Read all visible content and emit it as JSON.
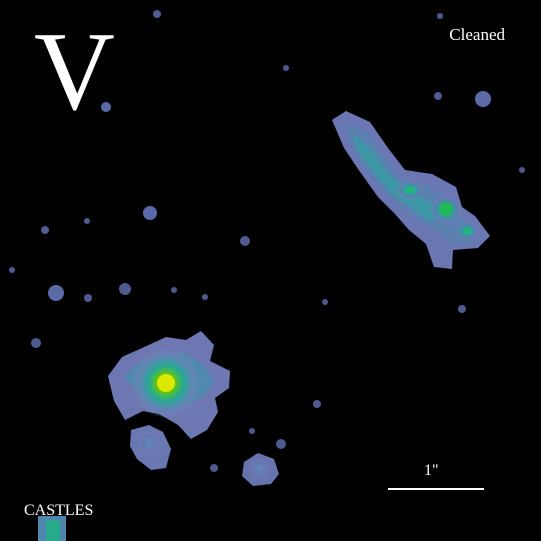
{
  "image": {
    "band": "V",
    "processing": "Cleaned",
    "scale_label": "1\"",
    "credit": "CASTLES",
    "colors": {
      "background": "#000000",
      "diffuse": "#6E7DB8",
      "mid": "#2FA7A0",
      "core": "#D8E800",
      "text": "#FFFFFF"
    }
  }
}
